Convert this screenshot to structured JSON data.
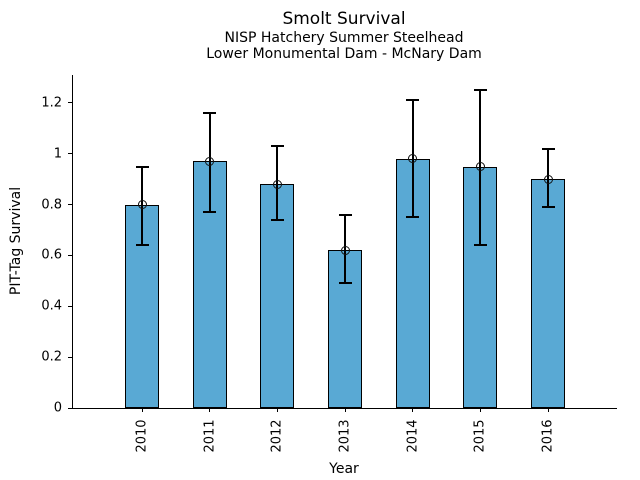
{
  "chart_data": {
    "type": "bar",
    "title": "Smolt Survival",
    "subtitle_line1": "NISP Hatchery Summer Steelhead",
    "subtitle_line2": "Lower Monumental Dam - McNary Dam",
    "xlabel": "Year",
    "ylabel": "PIT-Tag Survival",
    "categories": [
      "2010",
      "2011",
      "2012",
      "2013",
      "2014",
      "2015",
      "2016"
    ],
    "values": [
      0.8,
      0.97,
      0.88,
      0.62,
      0.98,
      0.95,
      0.9
    ],
    "error_low": [
      0.64,
      0.77,
      0.74,
      0.49,
      0.75,
      0.64,
      0.79
    ],
    "error_high": [
      0.95,
      1.16,
      1.03,
      0.76,
      1.21,
      1.25,
      1.02
    ],
    "ytick_labels": [
      "0",
      "0.2",
      "0.4",
      "0.6",
      "0.8",
      "1",
      "1.2"
    ],
    "ylim": [
      0,
      1.31
    ],
    "grid": false,
    "legend": "none",
    "marker": "open-circle",
    "bar_color": "#59A9D4",
    "bar_edge_color": "#000000",
    "error_color": "#000000",
    "axis_color": "#000000",
    "background": "#FFFFFF"
  }
}
